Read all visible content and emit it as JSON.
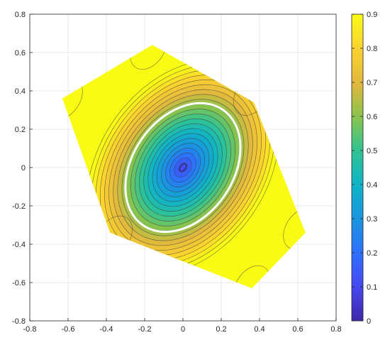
{
  "chart_data": {
    "type": "contour",
    "title": "",
    "xlabel": "",
    "ylabel": "",
    "xlim": [
      -0.8,
      0.8
    ],
    "ylim": [
      -0.8,
      0.8
    ],
    "xticks": [
      "-0.8",
      "-0.6",
      "-0.4",
      "-0.2",
      "0",
      "0.2",
      "0.4",
      "0.6",
      "0.8"
    ],
    "yticks": [
      "0.8",
      "0.6",
      "0.4",
      "0.2",
      "0",
      "-0.2",
      "-0.4",
      "-0.6",
      "-0.8"
    ],
    "grid": true,
    "domain_polygon": [
      [
        -0.16,
        0.64
      ],
      [
        0.37,
        0.34
      ],
      [
        0.64,
        -0.34
      ],
      [
        0.36,
        -0.63
      ],
      [
        -0.38,
        -0.34
      ],
      [
        -0.63,
        0.36
      ]
    ],
    "center": [
      0,
      0
    ],
    "min_value": 0.05,
    "max_value": 0.9,
    "highlighted_level": 0.6,
    "colorbar": {
      "ticks": [
        "0.9",
        "0.8",
        "0.7",
        "0.6",
        "0.5",
        "0.4",
        "0.3",
        "0.2",
        "0.1",
        "0"
      ],
      "range": [
        0,
        0.9
      ],
      "colormap": "parula"
    }
  }
}
